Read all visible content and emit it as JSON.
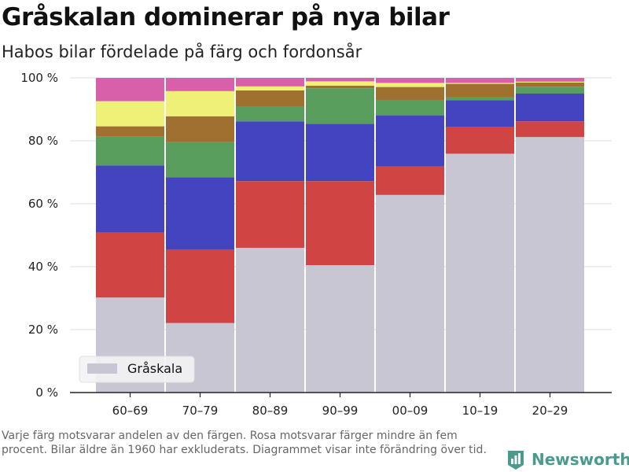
{
  "title": "Gråskalan dominerar på nya bilar",
  "subtitle": "Habos bilar fördelade på färg och fordonsår",
  "footnote": "Varje färg motsvarar andelen av den färgen. Rosa motsvarar färger mindre än fem procent. Bilar äldre än 1960 har exkluderats. Diagrammet visar inte förändring över tid.",
  "logo": {
    "text": "Newsworthy",
    "icon": "bar-chart-logo-icon",
    "color": "#4a9a8e"
  },
  "colors": {
    "grayscale": "#c8c6d3",
    "red": "#d04444",
    "blue": "#4444c0",
    "green": "#5a9e5e",
    "brown": "#a07030",
    "yellow": "#eef077",
    "pink": "#d85faa"
  },
  "chart_data": {
    "type": "bar",
    "stacked": true,
    "categories": [
      "60–69",
      "70–79",
      "80–89",
      "90–99",
      "00–09",
      "10–19",
      "20–29"
    ],
    "series": [
      {
        "name": "Gråskala",
        "color_key": "grayscale",
        "values": [
          30.2,
          22.1,
          46.0,
          40.5,
          62.8,
          75.9,
          81.2
        ]
      },
      {
        "color_key": "red",
        "values": [
          20.6,
          23.3,
          21.2,
          26.7,
          9.0,
          8.6,
          5.0
        ]
      },
      {
        "color_key": "blue",
        "values": [
          21.4,
          23.0,
          19.0,
          18.2,
          16.3,
          8.4,
          8.8
        ]
      },
      {
        "color_key": "green",
        "values": [
          9.1,
          11.2,
          4.8,
          11.3,
          4.9,
          1.1,
          2.2
        ]
      },
      {
        "color_key": "brown",
        "values": [
          3.3,
          8.2,
          5.0,
          0.8,
          4.1,
          4.1,
          1.3
        ]
      },
      {
        "color_key": "yellow",
        "values": [
          8.0,
          8.0,
          1.3,
          1.4,
          1.3,
          0.3,
          0.3
        ]
      },
      {
        "color_key": "pink",
        "values": [
          7.4,
          4.2,
          2.7,
          1.1,
          1.6,
          1.6,
          1.2
        ]
      }
    ],
    "ylim": [
      0,
      100
    ],
    "yticks": [
      0,
      20,
      40,
      60,
      80,
      100
    ],
    "ytick_labels": [
      "0 %",
      "20 %",
      "40 %",
      "60 %",
      "80 %",
      "100 %"
    ],
    "xlabel": "",
    "ylabel": "",
    "grid": true,
    "legend": {
      "placement": "bottom-left",
      "entries": [
        "Gråskala"
      ]
    }
  }
}
